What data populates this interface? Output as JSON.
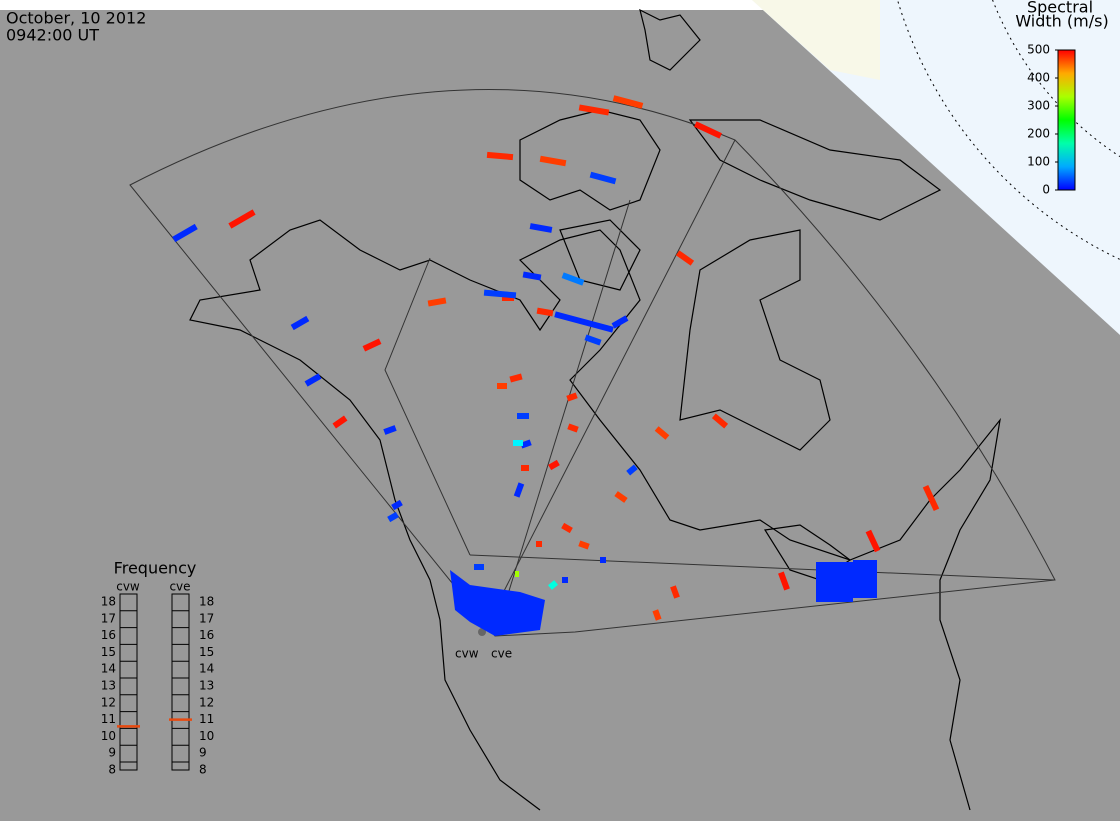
{
  "header": {
    "date": "October, 10 2012",
    "time": "0942:00 UT"
  },
  "colorbar": {
    "title_line1": "Spectral",
    "title_line2": "Width (m/s)",
    "range": [
      0,
      500
    ],
    "ticks": [
      0,
      100,
      200,
      300,
      400,
      500
    ]
  },
  "frequency": {
    "title": "Frequency",
    "range": [
      8,
      18
    ],
    "ticks": [
      8,
      9,
      10,
      11,
      12,
      13,
      14,
      15,
      16,
      17,
      18
    ],
    "radars": [
      {
        "name": "cvw",
        "value": 10.6
      },
      {
        "name": "cve",
        "value": 11
      }
    ]
  },
  "stations": [
    "cvw",
    "cve"
  ],
  "echo_widths": [
    480,
    470,
    490,
    480,
    470,
    490,
    480,
    470,
    480,
    490,
    480,
    470,
    480,
    490,
    480,
    470,
    480,
    490,
    480,
    470,
    480,
    490,
    480,
    470,
    480,
    490,
    480,
    470,
    480,
    20,
    30,
    20,
    20,
    30,
    20,
    20,
    30,
    20,
    20,
    30,
    20,
    20,
    30,
    20,
    20,
    30,
    20,
    20,
    30,
    60,
    120,
    140,
    330,
    20,
    20,
    20
  ]
}
